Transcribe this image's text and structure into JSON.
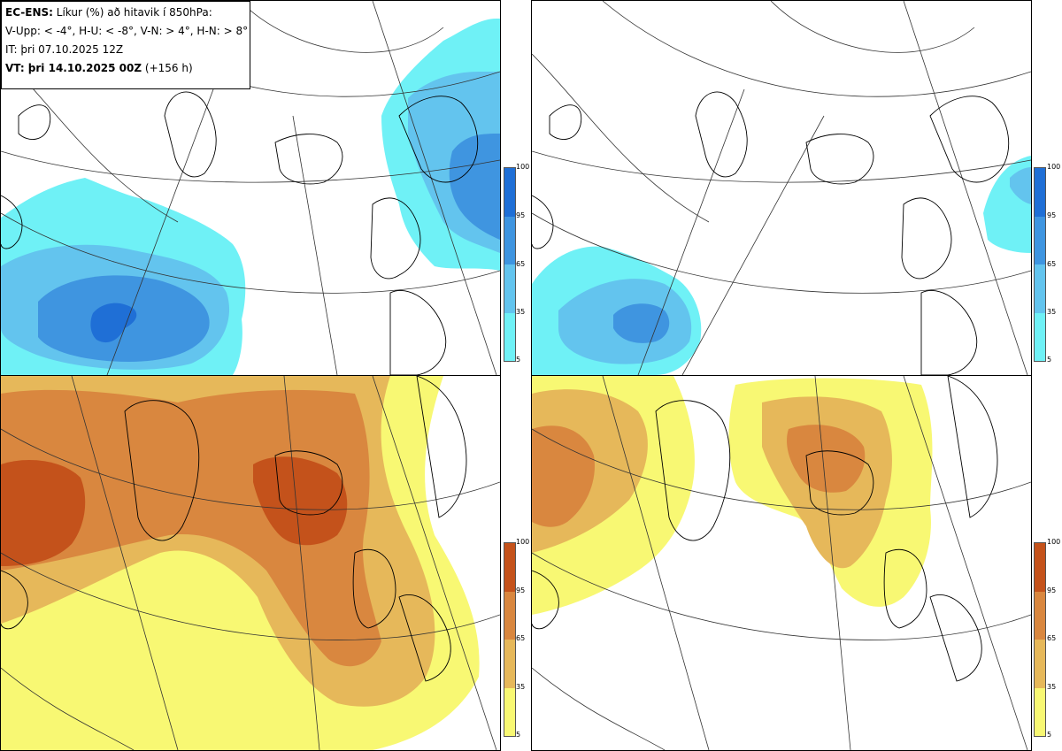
{
  "info": {
    "l1_bold": "EC-ENS:",
    "l1_rest": " Líkur (%) að hitavik í 850hPa:",
    "l2": "V-Upp: < -4°, H-U: < -8°, V-N: > 4°, H-N: > 8°",
    "l3": "IT: þri 07.10.2025 12Z",
    "l4_bold": "VT: þri 14.10.2025 00Z",
    "l4_rest": " (+156 h)"
  },
  "panels": [
    {
      "id": "v-upp",
      "scheme": "cold"
    },
    {
      "id": "h-u",
      "scheme": "cold"
    },
    {
      "id": "v-n",
      "scheme": "warm"
    },
    {
      "id": "h-n",
      "scheme": "warm"
    }
  ],
  "colorbar": {
    "ticks": [
      "100",
      "95",
      "65",
      "35",
      "5"
    ],
    "cold": [
      "#1f6fd6",
      "#3f95e0",
      "#63c4ee",
      "#6ff1f6"
    ],
    "warm": [
      "#c4521b",
      "#d9873f",
      "#e6b85a",
      "#f8f873"
    ]
  }
}
